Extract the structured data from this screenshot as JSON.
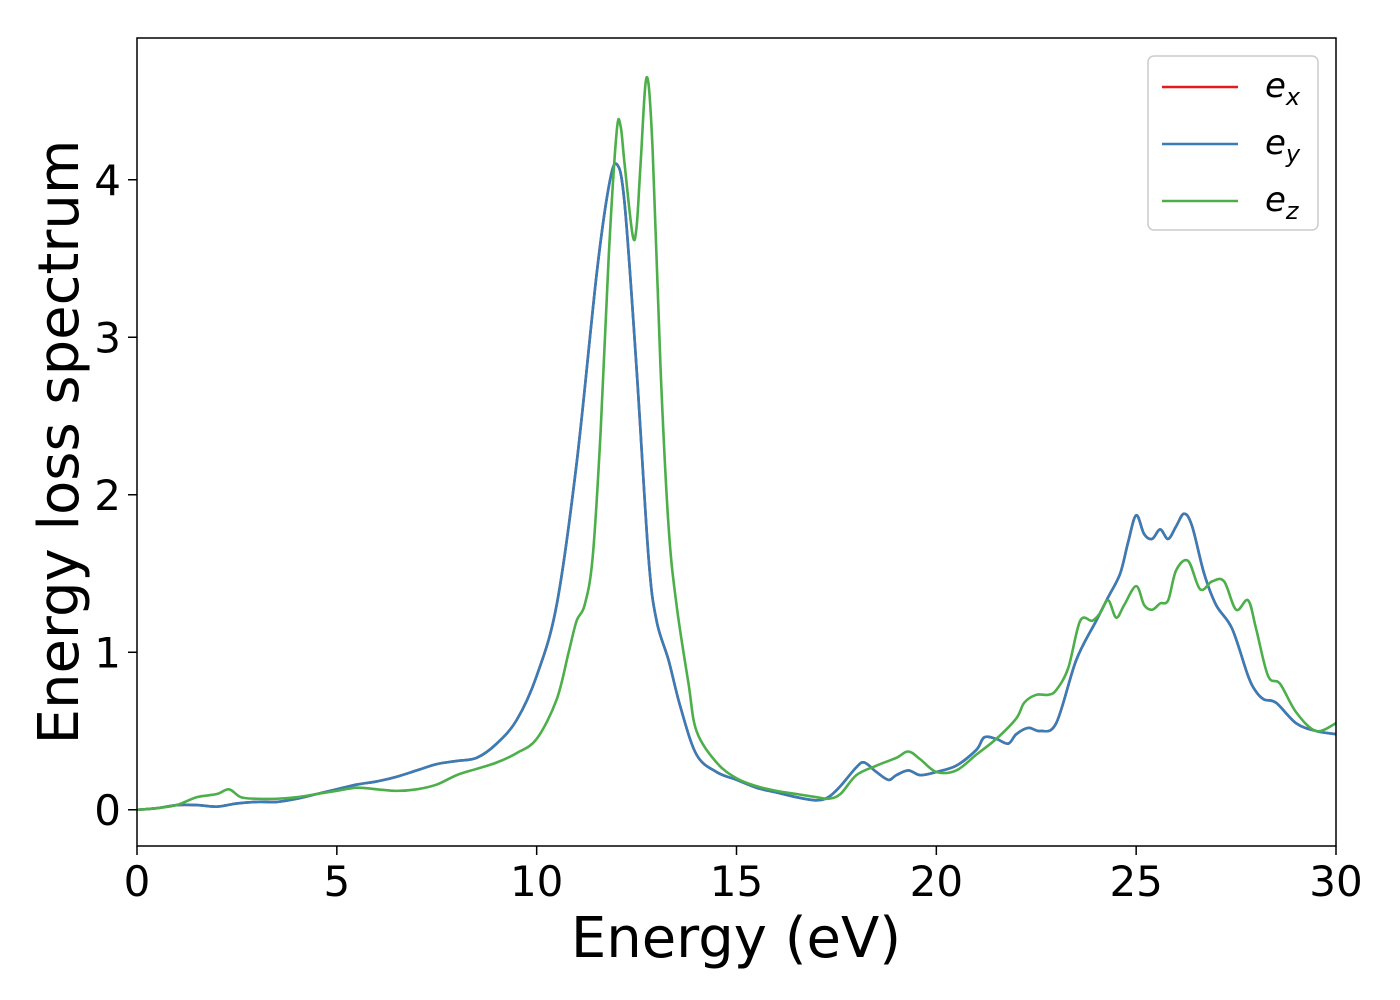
{
  "chart_data": {
    "type": "line",
    "title": "",
    "xlabel": "Energy (eV)",
    "ylabel": "Energy loss spectrum",
    "xlim": [
      0,
      30
    ],
    "ylim": [
      -0.23,
      4.9
    ],
    "xticks": [
      0,
      5,
      10,
      15,
      20,
      25,
      30
    ],
    "yticks": [
      0,
      1,
      2,
      3,
      4
    ],
    "xtick_labels": [
      "0",
      "5",
      "10",
      "15",
      "20",
      "25",
      "30"
    ],
    "ytick_labels": [
      "0",
      "1",
      "2",
      "3",
      "4"
    ],
    "grid": false,
    "legend_position": "top-right",
    "series": [
      {
        "name": "e_x",
        "legend_main": "e",
        "legend_sub": "x",
        "color": "#e41a1c",
        "x": [
          0,
          0.5,
          1,
          1.5,
          2,
          2.5,
          3,
          3.5,
          4,
          4.5,
          5,
          5.5,
          6,
          6.5,
          7,
          7.5,
          8,
          8.5,
          9,
          9.5,
          10,
          10.5,
          11,
          11.5,
          11.8,
          12,
          12.2,
          12.5,
          12.8,
          13,
          13.3,
          13.6,
          14,
          14.5,
          15,
          15.5,
          16,
          16.5,
          17,
          17.3,
          17.6,
          18,
          18.2,
          18.5,
          18.8,
          19,
          19.3,
          19.6,
          20,
          20.5,
          21,
          21.2,
          21.5,
          21.8,
          22,
          22.3,
          22.6,
          23,
          23.5,
          24,
          24.3,
          24.6,
          24.8,
          25,
          25.2,
          25.4,
          25.6,
          25.8,
          26,
          26.2,
          26.4,
          26.7,
          27,
          27.4,
          27.8,
          28,
          28.2,
          28.5,
          29,
          29.5,
          30
        ],
        "y": [
          0.0,
          0.01,
          0.03,
          0.03,
          0.02,
          0.04,
          0.05,
          0.05,
          0.07,
          0.1,
          0.13,
          0.16,
          0.18,
          0.21,
          0.25,
          0.29,
          0.31,
          0.33,
          0.42,
          0.57,
          0.85,
          1.3,
          2.2,
          3.4,
          3.95,
          4.1,
          3.85,
          2.8,
          1.6,
          1.2,
          0.95,
          0.65,
          0.35,
          0.24,
          0.19,
          0.14,
          0.11,
          0.08,
          0.06,
          0.08,
          0.15,
          0.27,
          0.3,
          0.24,
          0.19,
          0.22,
          0.25,
          0.22,
          0.24,
          0.28,
          0.38,
          0.46,
          0.45,
          0.42,
          0.48,
          0.52,
          0.5,
          0.55,
          0.95,
          1.2,
          1.35,
          1.5,
          1.7,
          1.87,
          1.75,
          1.72,
          1.78,
          1.72,
          1.8,
          1.88,
          1.8,
          1.5,
          1.3,
          1.15,
          0.85,
          0.75,
          0.7,
          0.68,
          0.55,
          0.5,
          0.48
        ]
      },
      {
        "name": "e_y",
        "legend_main": "e",
        "legend_sub": "y",
        "color": "#377eb8",
        "x": [
          0,
          0.5,
          1,
          1.5,
          2,
          2.5,
          3,
          3.5,
          4,
          4.5,
          5,
          5.5,
          6,
          6.5,
          7,
          7.5,
          8,
          8.5,
          9,
          9.5,
          10,
          10.5,
          11,
          11.5,
          11.8,
          12,
          12.2,
          12.5,
          12.8,
          13,
          13.3,
          13.6,
          14,
          14.5,
          15,
          15.5,
          16,
          16.5,
          17,
          17.3,
          17.6,
          18,
          18.2,
          18.5,
          18.8,
          19,
          19.3,
          19.6,
          20,
          20.5,
          21,
          21.2,
          21.5,
          21.8,
          22,
          22.3,
          22.6,
          23,
          23.5,
          24,
          24.3,
          24.6,
          24.8,
          25,
          25.2,
          25.4,
          25.6,
          25.8,
          26,
          26.2,
          26.4,
          26.7,
          27,
          27.4,
          27.8,
          28,
          28.2,
          28.5,
          29,
          29.5,
          30
        ],
        "y": [
          0.0,
          0.01,
          0.03,
          0.03,
          0.02,
          0.04,
          0.05,
          0.05,
          0.07,
          0.1,
          0.13,
          0.16,
          0.18,
          0.21,
          0.25,
          0.29,
          0.31,
          0.33,
          0.42,
          0.57,
          0.85,
          1.3,
          2.2,
          3.4,
          3.95,
          4.1,
          3.85,
          2.8,
          1.6,
          1.2,
          0.95,
          0.65,
          0.35,
          0.24,
          0.19,
          0.14,
          0.11,
          0.08,
          0.06,
          0.08,
          0.15,
          0.27,
          0.3,
          0.24,
          0.19,
          0.22,
          0.25,
          0.22,
          0.24,
          0.28,
          0.38,
          0.46,
          0.45,
          0.42,
          0.48,
          0.52,
          0.5,
          0.55,
          0.95,
          1.2,
          1.35,
          1.5,
          1.7,
          1.87,
          1.75,
          1.72,
          1.78,
          1.72,
          1.8,
          1.88,
          1.8,
          1.5,
          1.3,
          1.15,
          0.85,
          0.75,
          0.7,
          0.68,
          0.55,
          0.5,
          0.48
        ]
      },
      {
        "name": "e_z",
        "legend_main": "e",
        "legend_sub": "z",
        "color": "#4daf4a",
        "x": [
          0,
          0.5,
          1,
          1.5,
          2,
          2.3,
          2.6,
          3,
          3.5,
          4,
          4.5,
          5,
          5.5,
          6,
          6.5,
          7,
          7.5,
          8,
          8.5,
          9,
          9.5,
          10,
          10.5,
          10.8,
          11,
          11.2,
          11.4,
          11.6,
          11.8,
          12,
          12.1,
          12.2,
          12.4,
          12.5,
          12.6,
          12.75,
          12.9,
          13.1,
          13.3,
          13.5,
          13.8,
          14,
          14.5,
          15,
          15.5,
          16,
          16.5,
          17,
          17.3,
          17.6,
          18,
          18.5,
          19,
          19.3,
          19.6,
          20,
          20.5,
          21,
          21.5,
          22,
          22.2,
          22.5,
          22.8,
          23,
          23.3,
          23.6,
          23.9,
          24.1,
          24.3,
          24.5,
          24.7,
          25,
          25.2,
          25.4,
          25.6,
          25.8,
          26,
          26.3,
          26.6,
          26.9,
          27.2,
          27.5,
          27.8,
          28,
          28.3,
          28.6,
          29,
          29.5,
          30
        ],
        "y": [
          0.0,
          0.01,
          0.03,
          0.08,
          0.1,
          0.13,
          0.08,
          0.07,
          0.07,
          0.08,
          0.1,
          0.12,
          0.14,
          0.13,
          0.12,
          0.13,
          0.16,
          0.22,
          0.26,
          0.3,
          0.36,
          0.45,
          0.7,
          1.0,
          1.2,
          1.3,
          1.6,
          2.4,
          3.5,
          4.3,
          4.34,
          4.1,
          3.65,
          3.7,
          4.1,
          4.65,
          4.2,
          2.8,
          1.8,
          1.3,
          0.8,
          0.5,
          0.3,
          0.2,
          0.15,
          0.12,
          0.1,
          0.08,
          0.07,
          0.1,
          0.22,
          0.28,
          0.33,
          0.37,
          0.32,
          0.24,
          0.25,
          0.35,
          0.45,
          0.58,
          0.68,
          0.73,
          0.73,
          0.76,
          0.9,
          1.2,
          1.2,
          1.25,
          1.33,
          1.22,
          1.3,
          1.42,
          1.3,
          1.27,
          1.31,
          1.33,
          1.52,
          1.58,
          1.4,
          1.45,
          1.45,
          1.27,
          1.33,
          1.15,
          0.85,
          0.8,
          0.62,
          0.5,
          0.55
        ]
      }
    ]
  }
}
